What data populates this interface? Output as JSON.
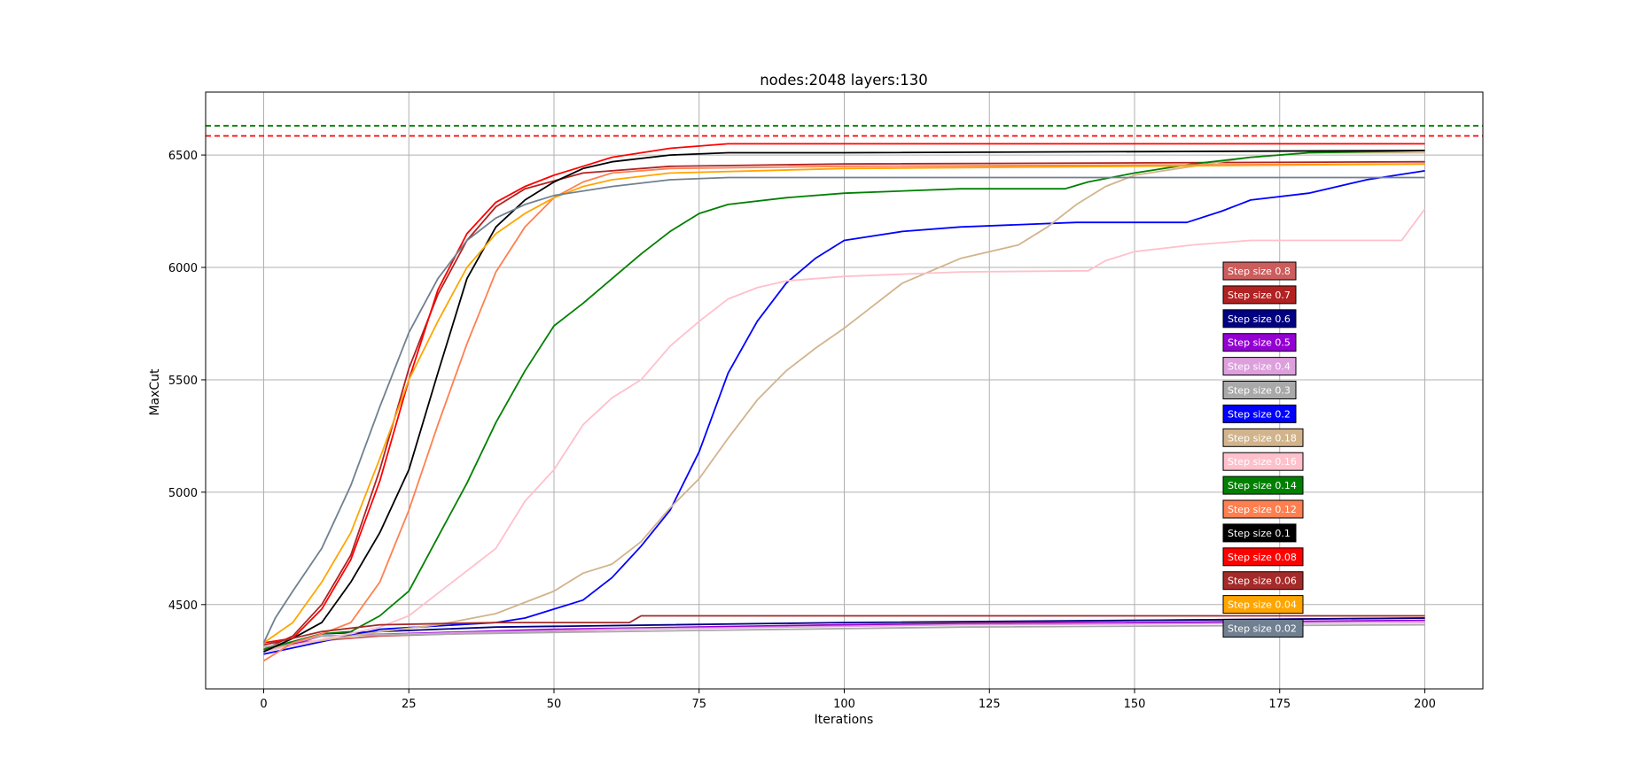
{
  "chart_data": {
    "type": "line",
    "title": "nodes:2048 layers:130",
    "xlabel": "Iterations",
    "ylabel": "MaxCut",
    "xlim": [
      -10,
      210
    ],
    "ylim": [
      4125,
      6780
    ],
    "xticks": [
      0,
      25,
      50,
      75,
      100,
      125,
      150,
      175,
      200
    ],
    "yticks": [
      4500,
      5000,
      5500,
      6000,
      6500
    ],
    "grid": true,
    "legend_location": "right-center (inside plot)",
    "reference_lines": [
      {
        "value": 6630,
        "color": "#008000",
        "style": "dashed"
      },
      {
        "value": 6585,
        "color": "#ff0000",
        "style": "dashed"
      }
    ],
    "series": [
      {
        "name": "Step size 0.8",
        "color": "#cd5c5c",
        "points": [
          [
            0,
            4300
          ],
          [
            5,
            4330
          ],
          [
            20,
            4360
          ],
          [
            60,
            4390
          ],
          [
            100,
            4410
          ],
          [
            150,
            4430
          ],
          [
            200,
            4440
          ]
        ]
      },
      {
        "name": "Step size 0.7",
        "color": "#b22222",
        "points": [
          [
            0,
            4300
          ],
          [
            5,
            4360
          ],
          [
            10,
            4500
          ],
          [
            15,
            4720
          ],
          [
            20,
            5100
          ],
          [
            25,
            5550
          ],
          [
            30,
            5880
          ],
          [
            35,
            6120
          ],
          [
            40,
            6270
          ],
          [
            45,
            6350
          ],
          [
            55,
            6420
          ],
          [
            70,
            6450
          ],
          [
            100,
            6460
          ],
          [
            200,
            6470
          ]
        ]
      },
      {
        "name": "Step size 0.6",
        "color": "#000080",
        "points": [
          [
            0,
            4300
          ],
          [
            10,
            4370
          ],
          [
            40,
            4400
          ],
          [
            100,
            4420
          ],
          [
            150,
            4430
          ],
          [
            200,
            4440
          ]
        ]
      },
      {
        "name": "Step size 0.5",
        "color": "#9400d3",
        "points": [
          [
            0,
            4290
          ],
          [
            10,
            4360
          ],
          [
            50,
            4390
          ],
          [
            100,
            4410
          ],
          [
            200,
            4430
          ]
        ]
      },
      {
        "name": "Step size 0.4",
        "color": "#dda0dd",
        "points": [
          [
            0,
            4300
          ],
          [
            10,
            4360
          ],
          [
            60,
            4390
          ],
          [
            120,
            4410
          ],
          [
            200,
            4420
          ]
        ]
      },
      {
        "name": "Step size 0.3",
        "color": "#a9a9a9",
        "points": [
          [
            0,
            4310
          ],
          [
            10,
            4360
          ],
          [
            60,
            4380
          ],
          [
            120,
            4400
          ],
          [
            200,
            4410
          ]
        ]
      },
      {
        "name": "Step size 0.2",
        "color": "#0000ff",
        "points": [
          [
            0,
            4280
          ],
          [
            20,
            4390
          ],
          [
            40,
            4420
          ],
          [
            45,
            4440
          ],
          [
            50,
            4480
          ],
          [
            55,
            4520
          ],
          [
            60,
            4620
          ],
          [
            65,
            4760
          ],
          [
            70,
            4920
          ],
          [
            75,
            5180
          ],
          [
            80,
            5530
          ],
          [
            85,
            5760
          ],
          [
            90,
            5930
          ],
          [
            95,
            6040
          ],
          [
            100,
            6120
          ],
          [
            110,
            6160
          ],
          [
            120,
            6180
          ],
          [
            140,
            6200
          ],
          [
            159,
            6200
          ],
          [
            165,
            6250
          ],
          [
            170,
            6300
          ],
          [
            180,
            6330
          ],
          [
            190,
            6390
          ],
          [
            200,
            6430
          ]
        ]
      },
      {
        "name": "Step size 0.18",
        "color": "#d2b48c",
        "points": [
          [
            0,
            4300
          ],
          [
            20,
            4380
          ],
          [
            30,
            4410
          ],
          [
            40,
            4460
          ],
          [
            50,
            4560
          ],
          [
            55,
            4640
          ],
          [
            60,
            4680
          ],
          [
            65,
            4780
          ],
          [
            70,
            4930
          ],
          [
            75,
            5060
          ],
          [
            80,
            5240
          ],
          [
            85,
            5410
          ],
          [
            90,
            5540
          ],
          [
            95,
            5640
          ],
          [
            100,
            5730
          ],
          [
            105,
            5830
          ],
          [
            110,
            5930
          ],
          [
            120,
            6040
          ],
          [
            130,
            6100
          ],
          [
            135,
            6180
          ],
          [
            140,
            6280
          ],
          [
            145,
            6360
          ],
          [
            150,
            6410
          ],
          [
            160,
            6450
          ],
          [
            170,
            6490
          ],
          [
            180,
            6510
          ],
          [
            200,
            6510
          ]
        ]
      },
      {
        "name": "Step size 0.16",
        "color": "#ffc0cb",
        "points": [
          [
            0,
            4290
          ],
          [
            20,
            4400
          ],
          [
            25,
            4450
          ],
          [
            30,
            4550
          ],
          [
            35,
            4650
          ],
          [
            40,
            4750
          ],
          [
            45,
            4960
          ],
          [
            50,
            5100
          ],
          [
            55,
            5300
          ],
          [
            60,
            5420
          ],
          [
            65,
            5500
          ],
          [
            70,
            5650
          ],
          [
            75,
            5760
          ],
          [
            80,
            5860
          ],
          [
            85,
            5910
          ],
          [
            90,
            5940
          ],
          [
            100,
            5960
          ],
          [
            120,
            5980
          ],
          [
            142,
            5985
          ],
          [
            145,
            6030
          ],
          [
            150,
            6070
          ],
          [
            160,
            6100
          ],
          [
            170,
            6120
          ],
          [
            196,
            6120
          ],
          [
            200,
            6260
          ]
        ]
      },
      {
        "name": "Step size 0.14",
        "color": "#008000",
        "points": [
          [
            0,
            4300
          ],
          [
            10,
            4370
          ],
          [
            15,
            4380
          ],
          [
            20,
            4450
          ],
          [
            25,
            4560
          ],
          [
            30,
            4800
          ],
          [
            35,
            5040
          ],
          [
            40,
            5310
          ],
          [
            45,
            5540
          ],
          [
            50,
            5740
          ],
          [
            55,
            5840
          ],
          [
            60,
            5950
          ],
          [
            65,
            6060
          ],
          [
            70,
            6160
          ],
          [
            75,
            6240
          ],
          [
            80,
            6280
          ],
          [
            90,
            6310
          ],
          [
            100,
            6330
          ],
          [
            120,
            6350
          ],
          [
            138,
            6350
          ],
          [
            142,
            6380
          ],
          [
            150,
            6420
          ],
          [
            160,
            6460
          ],
          [
            170,
            6490
          ],
          [
            180,
            6510
          ],
          [
            200,
            6520
          ]
        ]
      },
      {
        "name": "Step size 0.12",
        "color": "#ff7f50",
        "points": [
          [
            0,
            4250
          ],
          [
            5,
            4330
          ],
          [
            10,
            4370
          ],
          [
            15,
            4420
          ],
          [
            20,
            4600
          ],
          [
            25,
            4920
          ],
          [
            30,
            5300
          ],
          [
            35,
            5660
          ],
          [
            40,
            5980
          ],
          [
            45,
            6180
          ],
          [
            50,
            6310
          ],
          [
            55,
            6380
          ],
          [
            60,
            6420
          ],
          [
            70,
            6440
          ],
          [
            100,
            6450
          ],
          [
            200,
            6460
          ]
        ]
      },
      {
        "name": "Step size 0.1",
        "color": "#000000",
        "points": [
          [
            0,
            4290
          ],
          [
            5,
            4350
          ],
          [
            10,
            4420
          ],
          [
            15,
            4600
          ],
          [
            20,
            4820
          ],
          [
            25,
            5100
          ],
          [
            30,
            5530
          ],
          [
            35,
            5950
          ],
          [
            40,
            6180
          ],
          [
            45,
            6300
          ],
          [
            50,
            6380
          ],
          [
            55,
            6440
          ],
          [
            60,
            6470
          ],
          [
            70,
            6500
          ],
          [
            80,
            6510
          ],
          [
            100,
            6510
          ],
          [
            200,
            6520
          ]
        ]
      },
      {
        "name": "Step size 0.08",
        "color": "#ff0000",
        "points": [
          [
            0,
            4330
          ],
          [
            5,
            4350
          ],
          [
            10,
            4480
          ],
          [
            15,
            4700
          ],
          [
            20,
            5050
          ],
          [
            25,
            5500
          ],
          [
            30,
            5900
          ],
          [
            35,
            6150
          ],
          [
            40,
            6290
          ],
          [
            45,
            6360
          ],
          [
            50,
            6410
          ],
          [
            55,
            6450
          ],
          [
            60,
            6490
          ],
          [
            70,
            6530
          ],
          [
            80,
            6550
          ],
          [
            100,
            6550
          ],
          [
            200,
            6550
          ]
        ]
      },
      {
        "name": "Step size 0.06",
        "color": "#a52a2a",
        "points": [
          [
            0,
            4320
          ],
          [
            10,
            4380
          ],
          [
            20,
            4410
          ],
          [
            40,
            4420
          ],
          [
            63,
            4420
          ],
          [
            65,
            4450
          ],
          [
            100,
            4450
          ],
          [
            200,
            4450
          ]
        ]
      },
      {
        "name": "Step size 0.04",
        "color": "#ffa500",
        "points": [
          [
            0,
            4330
          ],
          [
            5,
            4420
          ],
          [
            10,
            4600
          ],
          [
            15,
            4820
          ],
          [
            20,
            5150
          ],
          [
            25,
            5500
          ],
          [
            30,
            5760
          ],
          [
            35,
            6000
          ],
          [
            40,
            6150
          ],
          [
            45,
            6240
          ],
          [
            50,
            6310
          ],
          [
            55,
            6360
          ],
          [
            60,
            6390
          ],
          [
            70,
            6420
          ],
          [
            100,
            6440
          ],
          [
            200,
            6460
          ]
        ]
      },
      {
        "name": "Step size 0.02",
        "color": "#708090",
        "points": [
          [
            0,
            4330
          ],
          [
            2,
            4440
          ],
          [
            5,
            4560
          ],
          [
            10,
            4750
          ],
          [
            15,
            5030
          ],
          [
            20,
            5380
          ],
          [
            25,
            5710
          ],
          [
            30,
            5950
          ],
          [
            35,
            6120
          ],
          [
            40,
            6220
          ],
          [
            45,
            6280
          ],
          [
            50,
            6320
          ],
          [
            60,
            6360
          ],
          [
            70,
            6390
          ],
          [
            80,
            6400
          ],
          [
            100,
            6400
          ],
          [
            200,
            6400
          ]
        ]
      }
    ],
    "legend_text_colors": {
      "Step size 0.8": "#ffffff",
      "Step size 0.7": "#ffffff",
      "Step size 0.6": "#ffffff",
      "Step size 0.5": "#ffffff",
      "Step size 0.4": "#ffffff",
      "Step size 0.3": "#ffffff",
      "Step size 0.2": "#ffffff",
      "Step size 0.18": "#ffffff",
      "Step size 0.16": "#ffffff",
      "Step size 0.14": "#ffffff",
      "Step size 0.12": "#ffffff",
      "Step size 0.1": "#ffffff",
      "Step size 0.08": "#ffffff",
      "Step size 0.06": "#ffffff",
      "Step size 0.04": "#ffffff",
      "Step size 0.02": "#ffffff"
    }
  }
}
